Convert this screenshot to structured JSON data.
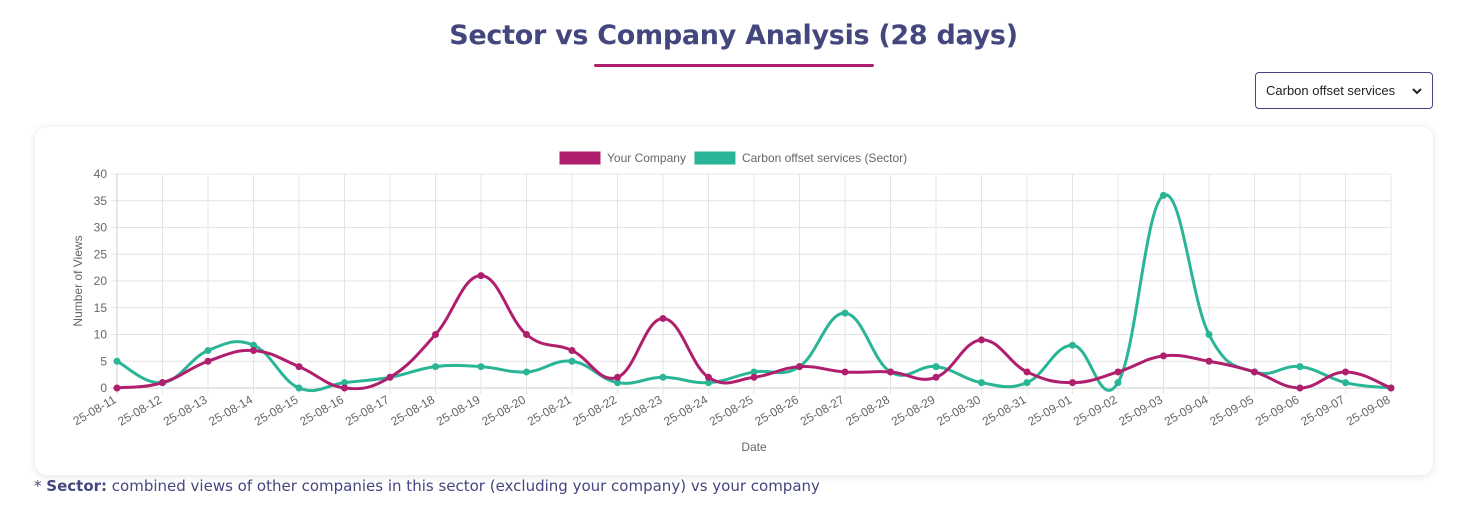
{
  "header": {
    "title": "Sector vs Company Analysis (28 days)"
  },
  "sector_select": {
    "value": "Carbon offset services",
    "icon": "chevron-down-icon"
  },
  "footnote": {
    "prefix": "* ",
    "label": "Sector:",
    "text": " combined views of other companies in this sector (excluding your company) vs your company"
  },
  "colors": {
    "company": "#b01f6e",
    "sector": "#2bb597",
    "title": "#44467e"
  },
  "chart_data": {
    "type": "line",
    "xlabel": "Date",
    "ylabel": "Number of Views",
    "ylim": [
      0,
      40
    ],
    "yticks": [
      0,
      5,
      10,
      15,
      20,
      25,
      30,
      35,
      40
    ],
    "grid": true,
    "legend_position": "top",
    "x": [
      "25-08-11",
      "25-08-12",
      "25-08-13",
      "25-08-14",
      "25-08-15",
      "25-08-16",
      "25-08-17",
      "25-08-18",
      "25-08-19",
      "25-08-20",
      "25-08-21",
      "25-08-22",
      "25-08-23",
      "25-08-24",
      "25-08-25",
      "25-08-26",
      "25-08-27",
      "25-08-28",
      "25-08-29",
      "25-08-30",
      "25-08-31",
      "25-09-01",
      "25-09-02",
      "25-09-03",
      "25-09-04",
      "25-09-05",
      "25-09-06",
      "25-09-07",
      "25-09-08"
    ],
    "series": [
      {
        "name": "Your Company",
        "color": "#b01f6e",
        "values": [
          0,
          1,
          5,
          7,
          4,
          0,
          2,
          10,
          21,
          10,
          7,
          2,
          13,
          2,
          2,
          4,
          3,
          3,
          2,
          9,
          3,
          1,
          3,
          6,
          5,
          3,
          0,
          3,
          0
        ]
      },
      {
        "name": "Carbon offset services (Sector)",
        "color": "#2bb597",
        "values": [
          5,
          1,
          7,
          8,
          0,
          1,
          2,
          4,
          4,
          3,
          5,
          1,
          2,
          1,
          3,
          4,
          14,
          3,
          4,
          1,
          1,
          8,
          1,
          36,
          10,
          3,
          4,
          1,
          0
        ]
      }
    ]
  }
}
